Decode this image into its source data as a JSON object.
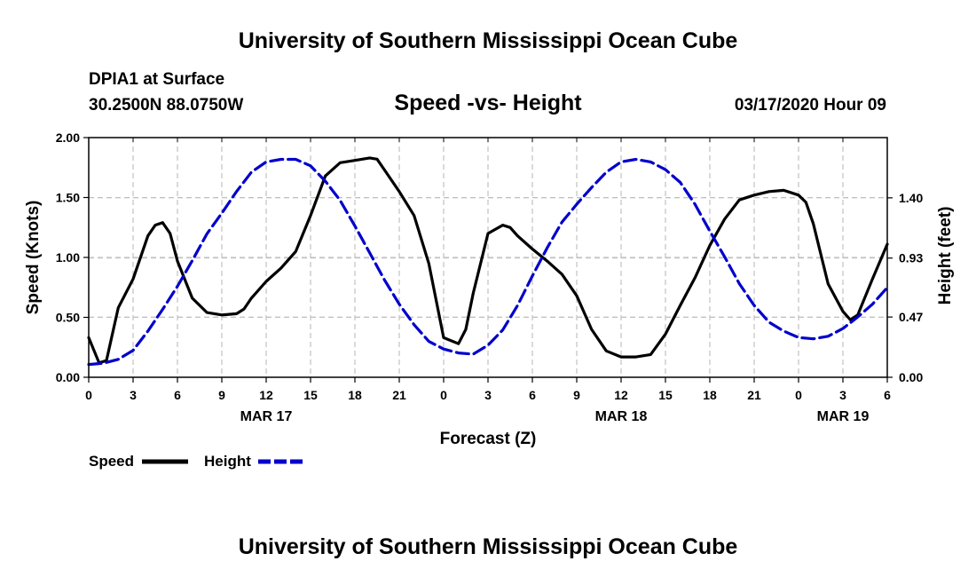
{
  "header": {
    "title": "University of Southern Mississippi Ocean Cube",
    "station": "DPIA1 at Surface",
    "coords": "30.2500N 88.0750W",
    "subtitle": "Speed -vs- Height",
    "datetime": "03/17/2020 Hour 09"
  },
  "footer": {
    "title": "University of Southern Mississippi Ocean Cube"
  },
  "chart_data": {
    "type": "line",
    "xlabel": "Forecast (Z)",
    "ylabel": "Speed (Knots)",
    "y2label": "Height (feet)",
    "xlim": [
      0,
      54
    ],
    "ylim": [
      0,
      2.0
    ],
    "y2lim": [
      0,
      1.87
    ],
    "x_ticks": [
      0,
      3,
      6,
      9,
      12,
      15,
      18,
      21,
      24,
      27,
      30,
      33,
      36,
      39,
      42,
      45,
      48,
      51,
      54
    ],
    "x_tick_labels": [
      "0",
      "3",
      "6",
      "9",
      "12",
      "15",
      "18",
      "21",
      "0",
      "3",
      "6",
      "9",
      "12",
      "15",
      "18",
      "21",
      "0",
      "3",
      "6"
    ],
    "y_ticks": [
      0,
      0.5,
      1.0,
      1.5,
      2.0
    ],
    "y_tick_labels": [
      "0.00",
      "0.50",
      "1.00",
      "1.50",
      "2.00"
    ],
    "y2_ticks": [
      0,
      0.47,
      0.93,
      1.4
    ],
    "y2_tick_labels": [
      "0.00",
      "0.47",
      "0.93",
      "1.40"
    ],
    "date_labels": [
      {
        "x": 12,
        "label": "MAR 17"
      },
      {
        "x": 36,
        "label": "MAR 18"
      },
      {
        "x": 51,
        "label": "MAR 19"
      }
    ],
    "grid": true,
    "legend_position": "bottom-left",
    "series": [
      {
        "name": "Speed",
        "axis": "left",
        "color": "#000000",
        "dash": "solid",
        "x": [
          0,
          0.7,
          1.2,
          2,
          3,
          4,
          4.5,
          5,
          5.5,
          6,
          7,
          8,
          9,
          10,
          10.5,
          11,
          12,
          13,
          14,
          15,
          16,
          17,
          18,
          19,
          19.5,
          20,
          21,
          22,
          23,
          24,
          25,
          25.5,
          26,
          27,
          28,
          28.5,
          29,
          30,
          31,
          32,
          33,
          34,
          35,
          36,
          37,
          38,
          39,
          40,
          41,
          42,
          43,
          44,
          45,
          46,
          47,
          48,
          48.5,
          49,
          50,
          51,
          51.5,
          52,
          53,
          54
        ],
        "values": [
          0.33,
          0.12,
          0.14,
          0.58,
          0.82,
          1.18,
          1.27,
          1.29,
          1.2,
          0.97,
          0.66,
          0.54,
          0.52,
          0.53,
          0.57,
          0.66,
          0.8,
          0.91,
          1.05,
          1.35,
          1.68,
          1.79,
          1.81,
          1.83,
          1.82,
          1.73,
          1.55,
          1.35,
          0.95,
          0.33,
          0.28,
          0.4,
          0.7,
          1.2,
          1.27,
          1.25,
          1.18,
          1.07,
          0.97,
          0.86,
          0.68,
          0.4,
          0.22,
          0.17,
          0.17,
          0.19,
          0.36,
          0.6,
          0.83,
          1.1,
          1.32,
          1.48,
          1.52,
          1.55,
          1.56,
          1.52,
          1.46,
          1.28,
          0.78,
          0.55,
          0.48,
          0.52,
          0.82,
          1.11
        ]
      },
      {
        "name": "Height",
        "axis": "right",
        "color": "#0000cc",
        "dash": "dashed",
        "x": [
          0,
          1,
          2,
          3,
          4,
          5,
          6,
          7,
          8,
          9,
          10,
          11,
          12,
          13,
          14,
          15,
          16,
          17,
          18,
          19,
          20,
          21,
          22,
          23,
          24,
          25,
          26,
          27,
          28,
          29,
          30,
          31,
          32,
          33,
          34,
          35,
          36,
          37,
          38,
          39,
          40,
          41,
          42,
          43,
          44,
          45,
          46,
          47,
          48,
          49,
          50,
          51,
          52,
          53,
          54
        ],
        "values": [
          0.1,
          0.11,
          0.14,
          0.21,
          0.36,
          0.53,
          0.71,
          0.91,
          1.12,
          1.28,
          1.45,
          1.6,
          1.68,
          1.7,
          1.7,
          1.65,
          1.53,
          1.38,
          1.18,
          0.97,
          0.76,
          0.57,
          0.41,
          0.28,
          0.22,
          0.19,
          0.18,
          0.25,
          0.37,
          0.56,
          0.79,
          1.01,
          1.21,
          1.35,
          1.48,
          1.6,
          1.68,
          1.7,
          1.68,
          1.62,
          1.52,
          1.35,
          1.14,
          0.94,
          0.73,
          0.56,
          0.43,
          0.36,
          0.31,
          0.3,
          0.32,
          0.38,
          0.47,
          0.57,
          0.7
        ]
      }
    ]
  }
}
